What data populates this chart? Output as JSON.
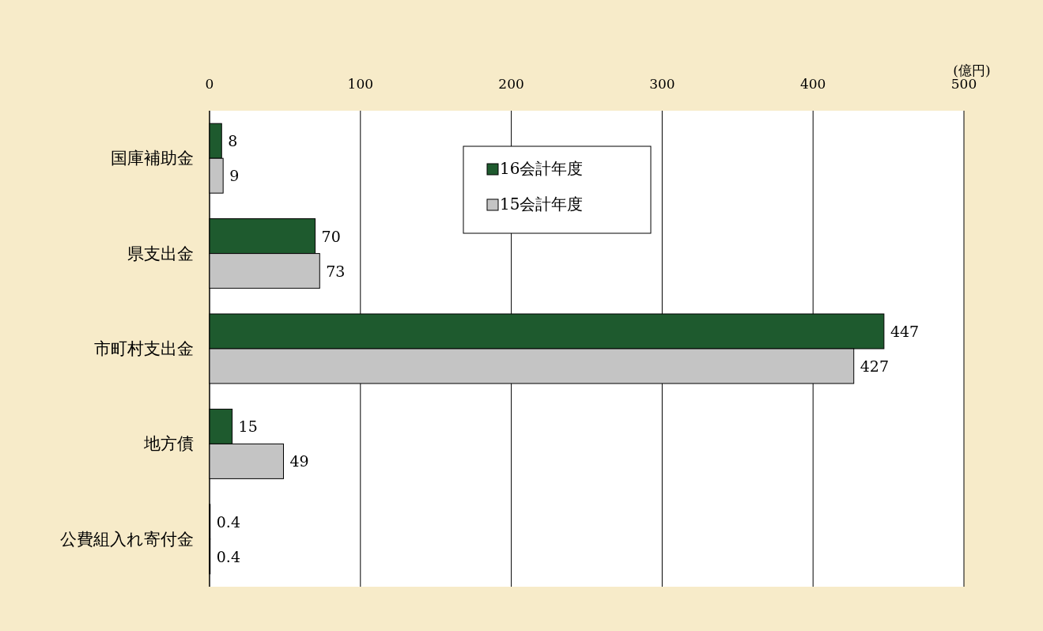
{
  "chart_data": {
    "type": "bar",
    "orientation": "horizontal",
    "xlabel": "(億円)",
    "categories": [
      "国庫補助金",
      "県支出金",
      "市町村支出金",
      "地方債",
      "公費組入れ寄付金"
    ],
    "series": [
      {
        "name": "16会計年度",
        "color": "#1e5a2e",
        "values": [
          8,
          70,
          447,
          15,
          0.4
        ]
      },
      {
        "name": "15会計年度",
        "color": "#c4c4c4",
        "values": [
          9,
          73,
          427,
          49,
          0.4
        ]
      }
    ],
    "xlim": [
      0,
      500
    ],
    "xticks": [
      0,
      100,
      200,
      300,
      400,
      500
    ],
    "grid": "x",
    "legend": "top",
    "data_labels": true
  }
}
